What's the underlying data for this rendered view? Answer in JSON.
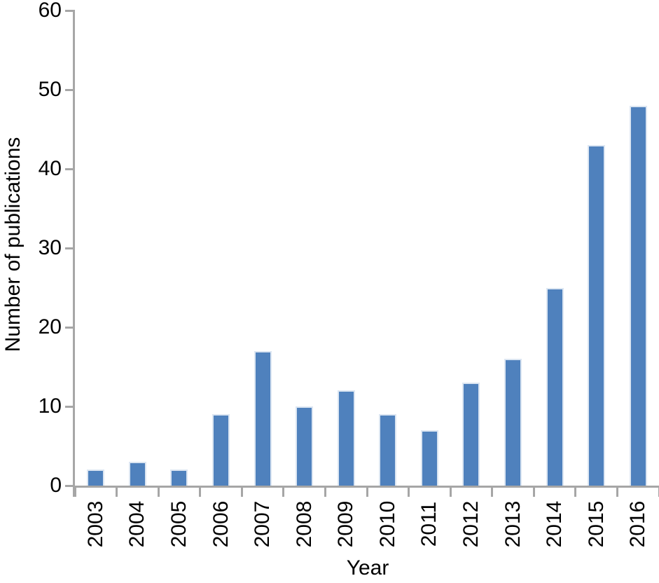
{
  "chart_data": {
    "type": "bar",
    "title": "",
    "xlabel": "Year",
    "ylabel": "Number of publications",
    "categories": [
      "2003",
      "2004",
      "2005",
      "2006",
      "2007",
      "2008",
      "2009",
      "2010",
      "2011",
      "2012",
      "2013",
      "2014",
      "2015",
      "2016"
    ],
    "values": [
      2,
      3,
      2,
      9,
      17,
      10,
      12,
      9,
      7,
      13,
      16,
      25,
      43,
      48
    ],
    "ylim": [
      0,
      60
    ],
    "yticks": [
      0,
      10,
      20,
      30,
      40,
      50,
      60
    ],
    "grid": "off",
    "legend": "none",
    "tick_style": "outside",
    "x_tick_label_rotation_deg": 90,
    "colors": {
      "bar": "#4f81bd",
      "bar_edge": "#dce6f2",
      "axis": "#a6a6a6",
      "text": "#000000",
      "background": "#ffffff"
    }
  }
}
